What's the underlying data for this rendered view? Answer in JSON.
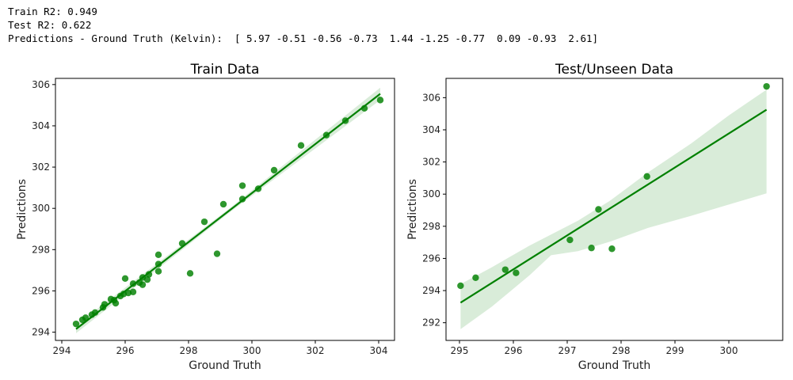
{
  "console": {
    "train_r2": "Train R2: 0.949",
    "test_r2": "Test R2: 0.622",
    "diff": "Predictions - Ground Truth (Kelvin):  [ 5.97 -0.51 -0.56 -0.73  1.44 -1.25 -0.77  0.09 -0.93  2.61]"
  },
  "chart_data": [
    {
      "type": "scatter",
      "title": "Train Data",
      "xlabel": "Ground Truth",
      "ylabel": "Predictions",
      "xlim": [
        293.8,
        304.5
      ],
      "ylim": [
        293.6,
        306.3
      ],
      "xticks": [
        294,
        296,
        298,
        300,
        302,
        304
      ],
      "yticks": [
        294,
        296,
        298,
        300,
        302,
        304,
        306
      ],
      "color": "#008000",
      "grid": false,
      "points": [
        [
          294.45,
          294.4
        ],
        [
          294.65,
          294.6
        ],
        [
          294.75,
          294.7
        ],
        [
          294.95,
          294.85
        ],
        [
          295.05,
          294.95
        ],
        [
          295.3,
          295.2
        ],
        [
          295.35,
          295.35
        ],
        [
          295.55,
          295.6
        ],
        [
          295.65,
          295.55
        ],
        [
          295.7,
          295.4
        ],
        [
          295.85,
          295.75
        ],
        [
          295.95,
          295.85
        ],
        [
          296.0,
          296.6
        ],
        [
          296.1,
          295.9
        ],
        [
          296.25,
          295.95
        ],
        [
          296.25,
          296.35
        ],
        [
          296.45,
          296.4
        ],
        [
          296.55,
          296.3
        ],
        [
          296.55,
          296.65
        ],
        [
          296.7,
          296.55
        ],
        [
          296.75,
          296.8
        ],
        [
          297.05,
          297.3
        ],
        [
          297.05,
          296.95
        ],
        [
          297.05,
          297.75
        ],
        [
          297.8,
          298.3
        ],
        [
          298.05,
          296.85
        ],
        [
          298.5,
          299.35
        ],
        [
          298.9,
          297.8
        ],
        [
          299.1,
          300.2
        ],
        [
          299.7,
          300.45
        ],
        [
          299.7,
          301.1
        ],
        [
          300.2,
          300.95
        ],
        [
          300.7,
          301.85
        ],
        [
          301.55,
          303.05
        ],
        [
          302.35,
          303.55
        ],
        [
          302.95,
          304.25
        ],
        [
          303.55,
          304.85
        ],
        [
          304.05,
          305.25
        ]
      ],
      "fit": {
        "x": [
          294.45,
          304.05
        ],
        "y": [
          294.15,
          305.55
        ]
      },
      "ci_upper": [
        [
          294.45,
          294.35
        ],
        [
          299.25,
          299.95
        ],
        [
          304.05,
          305.85
        ]
      ],
      "ci_lower": [
        [
          294.45,
          293.95
        ],
        [
          299.25,
          299.75
        ],
        [
          304.05,
          305.25
        ]
      ]
    },
    {
      "type": "scatter",
      "title": "Test/Unseen Data",
      "xlabel": "Ground Truth",
      "ylabel": "Predictions",
      "xlim": [
        294.75,
        301.0
      ],
      "ylim": [
        290.9,
        307.2
      ],
      "xticks": [
        295,
        296,
        297,
        298,
        299,
        300
      ],
      "yticks": [
        292,
        294,
        296,
        298,
        300,
        302,
        304,
        306
      ],
      "color": "#008000",
      "grid": false,
      "points": [
        [
          295.02,
          294.3
        ],
        [
          295.3,
          294.8
        ],
        [
          295.85,
          295.3
        ],
        [
          296.05,
          295.1
        ],
        [
          297.05,
          297.15
        ],
        [
          297.45,
          296.65
        ],
        [
          297.58,
          299.05
        ],
        [
          297.83,
          296.6
        ],
        [
          298.48,
          301.1
        ],
        [
          300.7,
          306.7
        ]
      ],
      "fit": {
        "x": [
          295.02,
          300.7
        ],
        "y": [
          293.25,
          305.25
        ]
      },
      "ci_upper": [
        [
          295.02,
          294.4
        ],
        [
          295.6,
          295.45
        ],
        [
          296.3,
          296.8
        ],
        [
          297.2,
          298.35
        ],
        [
          297.8,
          299.6
        ],
        [
          298.5,
          301.35
        ],
        [
          299.3,
          303.15
        ],
        [
          300.0,
          304.9
        ],
        [
          300.7,
          306.5
        ]
      ],
      "ci_lower": [
        [
          300.7,
          300.05
        ],
        [
          300.0,
          299.35
        ],
        [
          299.3,
          298.65
        ],
        [
          298.5,
          297.9
        ],
        [
          297.8,
          297.05
        ],
        [
          297.2,
          296.45
        ],
        [
          296.7,
          296.2
        ],
        [
          296.3,
          294.95
        ],
        [
          295.6,
          293.0
        ],
        [
          295.02,
          291.6
        ]
      ]
    }
  ]
}
